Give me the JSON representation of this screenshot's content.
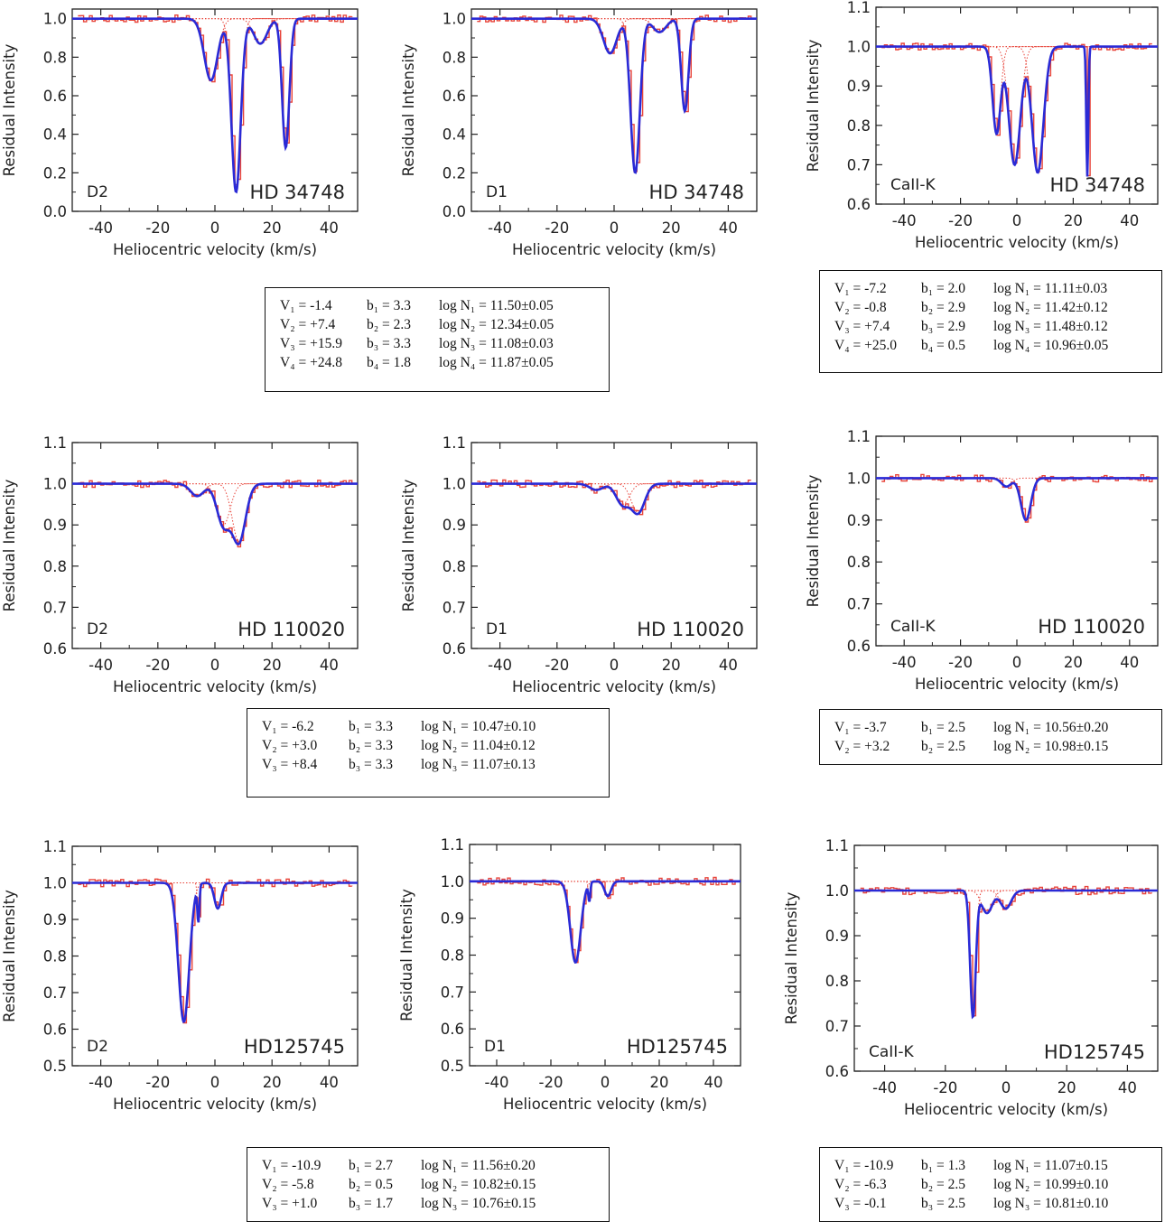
{
  "colors": {
    "observed": "#e8443a",
    "fit": "#2a2ad6",
    "components": "#e8443a",
    "axis": "#222222"
  },
  "chart_data": [
    {
      "type": "line",
      "line": "D2",
      "star": "HD 34748",
      "ylabel": "Residual Intensity",
      "xlabel": "Heliocentric velocity (km/s)",
      "xlim": [
        -50,
        50
      ],
      "ylim": [
        0,
        1.05
      ],
      "xticks": [
        "-40",
        "-20",
        "0",
        "20",
        "40"
      ],
      "xtick_values": [
        -40,
        -20,
        0,
        20,
        40
      ],
      "yticks": [
        "0.0",
        "0.2",
        "0.4",
        "0.6",
        "0.8",
        "1.0"
      ],
      "ytick_values": [
        0,
        0.2,
        0.4,
        0.6,
        0.8,
        1.0
      ],
      "series": [
        {
          "v": -1.4,
          "b": 3.3,
          "depth": 0.32
        },
        {
          "v": 7.4,
          "b": 2.3,
          "depth": 0.9
        },
        {
          "v": 15.9,
          "b": 3.3,
          "depth": 0.13
        },
        {
          "v": 24.8,
          "b": 1.8,
          "depth": 0.67
        }
      ]
    },
    {
      "type": "line",
      "line": "D1",
      "star": "HD 34748",
      "ylabel": "Residual Intensity",
      "xlabel": "Heliocentric velocity (km/s)",
      "xlim": [
        -50,
        50
      ],
      "ylim": [
        0,
        1.05
      ],
      "xticks": [
        "-40",
        "-20",
        "0",
        "20",
        "40"
      ],
      "xtick_values": [
        -40,
        -20,
        0,
        20,
        40
      ],
      "yticks": [
        "0.0",
        "0.2",
        "0.4",
        "0.6",
        "0.8",
        "1.0"
      ],
      "ytick_values": [
        0,
        0.2,
        0.4,
        0.6,
        0.8,
        1.0
      ],
      "series": [
        {
          "v": -1.4,
          "b": 3.3,
          "depth": 0.18
        },
        {
          "v": 7.4,
          "b": 2.3,
          "depth": 0.8
        },
        {
          "v": 15.9,
          "b": 3.3,
          "depth": 0.07
        },
        {
          "v": 24.8,
          "b": 1.8,
          "depth": 0.48
        }
      ]
    },
    {
      "type": "line",
      "line": "CaII-K",
      "star": "HD 34748",
      "ylabel": "Residual Intensity",
      "xlabel": "Heliocentric velocity (km/s)",
      "xlim": [
        -50,
        50
      ],
      "ylim": [
        0.6,
        1.1
      ],
      "xticks": [
        "-40",
        "-20",
        "0",
        "20",
        "40"
      ],
      "xtick_values": [
        -40,
        -20,
        0,
        20,
        40
      ],
      "yticks": [
        "0.6",
        "0.7",
        "0.8",
        "0.9",
        "1.0",
        "1.1"
      ],
      "ytick_values": [
        0.6,
        0.7,
        0.8,
        0.9,
        1.0,
        1.1
      ],
      "series": [
        {
          "v": -7.2,
          "b": 2.0,
          "depth": 0.22
        },
        {
          "v": -0.8,
          "b": 2.9,
          "depth": 0.3
        },
        {
          "v": 7.4,
          "b": 2.9,
          "depth": 0.32
        },
        {
          "v": 25.0,
          "b": 0.5,
          "depth": 0.33
        }
      ]
    },
    {
      "type": "line",
      "line": "D2",
      "star": "HD 110020",
      "ylabel": "Residual Intensity",
      "xlabel": "Heliocentric velocity (km/s)",
      "xlim": [
        -50,
        50
      ],
      "ylim": [
        0.6,
        1.1
      ],
      "xticks": [
        "-40",
        "-20",
        "0",
        "20",
        "40"
      ],
      "xtick_values": [
        -40,
        -20,
        0,
        20,
        40
      ],
      "yticks": [
        "0.6",
        "0.7",
        "0.8",
        "0.9",
        "1.0",
        "1.1"
      ],
      "ytick_values": [
        0.6,
        0.7,
        0.8,
        0.9,
        1.0,
        1.1
      ],
      "series": [
        {
          "v": -6.2,
          "b": 3.3,
          "depth": 0.03
        },
        {
          "v": 3.0,
          "b": 3.3,
          "depth": 0.1
        },
        {
          "v": 8.4,
          "b": 3.3,
          "depth": 0.14
        }
      ]
    },
    {
      "type": "line",
      "line": "D1",
      "star": "HD 110020",
      "ylabel": "Residual Intensity",
      "xlabel": "Heliocentric velocity (km/s)",
      "xlim": [
        -50,
        50
      ],
      "ylim": [
        0.6,
        1.1
      ],
      "xticks": [
        "-40",
        "-20",
        "0",
        "20",
        "40"
      ],
      "xtick_values": [
        -40,
        -20,
        0,
        20,
        40
      ],
      "yticks": [
        "0.6",
        "0.7",
        "0.8",
        "0.9",
        "1.0",
        "1.1"
      ],
      "ytick_values": [
        0.6,
        0.7,
        0.8,
        0.9,
        1.0,
        1.1
      ],
      "series": [
        {
          "v": -6.2,
          "b": 3.3,
          "depth": 0.015
        },
        {
          "v": 3.0,
          "b": 3.3,
          "depth": 0.05
        },
        {
          "v": 8.4,
          "b": 3.3,
          "depth": 0.07
        }
      ]
    },
    {
      "type": "line",
      "line": "CaII-K",
      "star": "HD 110020",
      "ylabel": "Residual Intensity",
      "xlabel": "Heliocentric velocity (km/s)",
      "xlim": [
        -50,
        50
      ],
      "ylim": [
        0.6,
        1.1
      ],
      "xticks": [
        "-40",
        "-20",
        "0",
        "20",
        "40"
      ],
      "xtick_values": [
        -40,
        -20,
        0,
        20,
        40
      ],
      "yticks": [
        "0.6",
        "0.7",
        "0.8",
        "0.9",
        "1.0",
        "1.1"
      ],
      "ytick_values": [
        0.6,
        0.7,
        0.8,
        0.9,
        1.0,
        1.1
      ],
      "series": [
        {
          "v": -3.7,
          "b": 2.5,
          "depth": 0.02
        },
        {
          "v": 3.2,
          "b": 2.5,
          "depth": 0.1
        }
      ]
    },
    {
      "type": "line",
      "line": "D2",
      "star": "HD125745",
      "ylabel": "Residual Intensity",
      "xlabel": "Heliocentric velocity (km/s)",
      "xlim": [
        -50,
        50
      ],
      "ylim": [
        0.5,
        1.1
      ],
      "xticks": [
        "-40",
        "-20",
        "0",
        "20",
        "40"
      ],
      "xtick_values": [
        -40,
        -20,
        0,
        20,
        40
      ],
      "yticks": [
        "0.5",
        "0.6",
        "0.7",
        "0.8",
        "0.9",
        "1.0",
        "1.1"
      ],
      "ytick_values": [
        0.5,
        0.6,
        0.7,
        0.8,
        0.9,
        1.0,
        1.1
      ],
      "series": [
        {
          "v": -10.9,
          "b": 2.7,
          "depth": 0.38
        },
        {
          "v": -5.8,
          "b": 0.5,
          "depth": 0.1
        },
        {
          "v": 1.0,
          "b": 1.7,
          "depth": 0.07
        }
      ]
    },
    {
      "type": "line",
      "line": "D1",
      "star": "HD125745",
      "ylabel": "Residual Intensity",
      "xlabel": "Heliocentric velocity (km/s)",
      "xlim": [
        -50,
        50
      ],
      "ylim": [
        0.5,
        1.1
      ],
      "xticks": [
        "-40",
        "-20",
        "0",
        "20",
        "40"
      ],
      "xtick_values": [
        -40,
        -20,
        0,
        20,
        40
      ],
      "yticks": [
        "0.5",
        "0.6",
        "0.7",
        "0.8",
        "0.9",
        "1.0",
        "1.1"
      ],
      "ytick_values": [
        0.5,
        0.6,
        0.7,
        0.8,
        0.9,
        1.0,
        1.1
      ],
      "series": [
        {
          "v": -10.9,
          "b": 2.7,
          "depth": 0.22
        },
        {
          "v": -5.8,
          "b": 0.5,
          "depth": 0.05
        },
        {
          "v": 1.0,
          "b": 1.7,
          "depth": 0.04
        }
      ]
    },
    {
      "type": "line",
      "line": "CaII-K",
      "star": "HD125745",
      "ylabel": "Residual Intensity",
      "xlabel": "Heliocentric velocity (km/s)",
      "xlim": [
        -50,
        50
      ],
      "ylim": [
        0.6,
        1.1
      ],
      "xticks": [
        "-40",
        "-20",
        "0",
        "20",
        "40"
      ],
      "xtick_values": [
        -40,
        -20,
        0,
        20,
        40
      ],
      "yticks": [
        "0.6",
        "0.7",
        "0.8",
        "0.9",
        "1.0",
        "1.1"
      ],
      "ytick_values": [
        0.6,
        0.7,
        0.8,
        0.9,
        1.0,
        1.1
      ],
      "series": [
        {
          "v": -10.9,
          "b": 1.3,
          "depth": 0.28
        },
        {
          "v": -6.3,
          "b": 2.5,
          "depth": 0.05
        },
        {
          "v": -0.1,
          "b": 2.5,
          "depth": 0.04
        }
      ]
    }
  ],
  "param_boxes": [
    {
      "rows": [
        [
          "V₁ = -1.4",
          "b₁ = 3.3",
          "log N₁ =  11.50±0.05"
        ],
        [
          "V₂ = +7.4",
          "b₂ = 2.3",
          "log N₂ =  12.34±0.05"
        ],
        [
          "V₃ = +15.9",
          "b₃ = 3.3",
          "log N₃ =  11.08±0.03"
        ],
        [
          "V₄ = +24.8",
          "b₄ = 1.8",
          "log N₄ =  11.87±0.05"
        ]
      ]
    },
    {
      "rows": [
        [
          "V₁ = -7.2",
          "b₁ = 2.0",
          "log N₁ =  11.11±0.03"
        ],
        [
          "V₂ = -0.8",
          "b₂ = 2.9",
          "log N₂ =  11.42±0.12"
        ],
        [
          "V₃ = +7.4",
          "b₃ = 2.9",
          "log N₃ =  11.48±0.12"
        ],
        [
          "V₄ = +25.0",
          "b₄ = 0.5",
          "log N₄ =  10.96±0.05"
        ]
      ]
    },
    {
      "rows": [
        [
          "V₁ = -6.2",
          "b₁ = 3.3",
          "log N₁ = 10.47±0.10"
        ],
        [
          "V₂ = +3.0",
          "b₂ = 3.3",
          "log N₂ = 11.04±0.12"
        ],
        [
          "V₃ = +8.4",
          "b₃ = 3.3",
          "log N₃ = 11.07±0.13"
        ]
      ]
    },
    {
      "rows": [
        [
          "V₁ = -3.7",
          "b₁ = 2.5",
          "log N₁ = 10.56±0.20"
        ],
        [
          "V₂ = +3.2",
          "b₂ = 2.5",
          "log N₂ = 10.98±0.15"
        ]
      ]
    },
    {
      "rows": [
        [
          "V₁ = -10.9",
          "b₁ = 2.7",
          "log N₁ = 11.56±0.20"
        ],
        [
          "V₂ = -5.8",
          "b₂ = 0.5",
          "log N₂ = 10.82±0.15"
        ],
        [
          "V₃ = +1.0",
          "b₃ = 1.7",
          "log N₃ = 10.76±0.15"
        ]
      ]
    },
    {
      "rows": [
        [
          "V₁ = -10.9",
          "b₁ = 1.3",
          "log N₁ = 11.07±0.15"
        ],
        [
          "V₂ = -6.3",
          "b₂ = 2.5",
          "log N₂ = 10.99±0.10"
        ],
        [
          "V₃ = -0.1",
          "b₃ = 2.5",
          "log N₃ = 10.81±0.10"
        ]
      ]
    }
  ]
}
